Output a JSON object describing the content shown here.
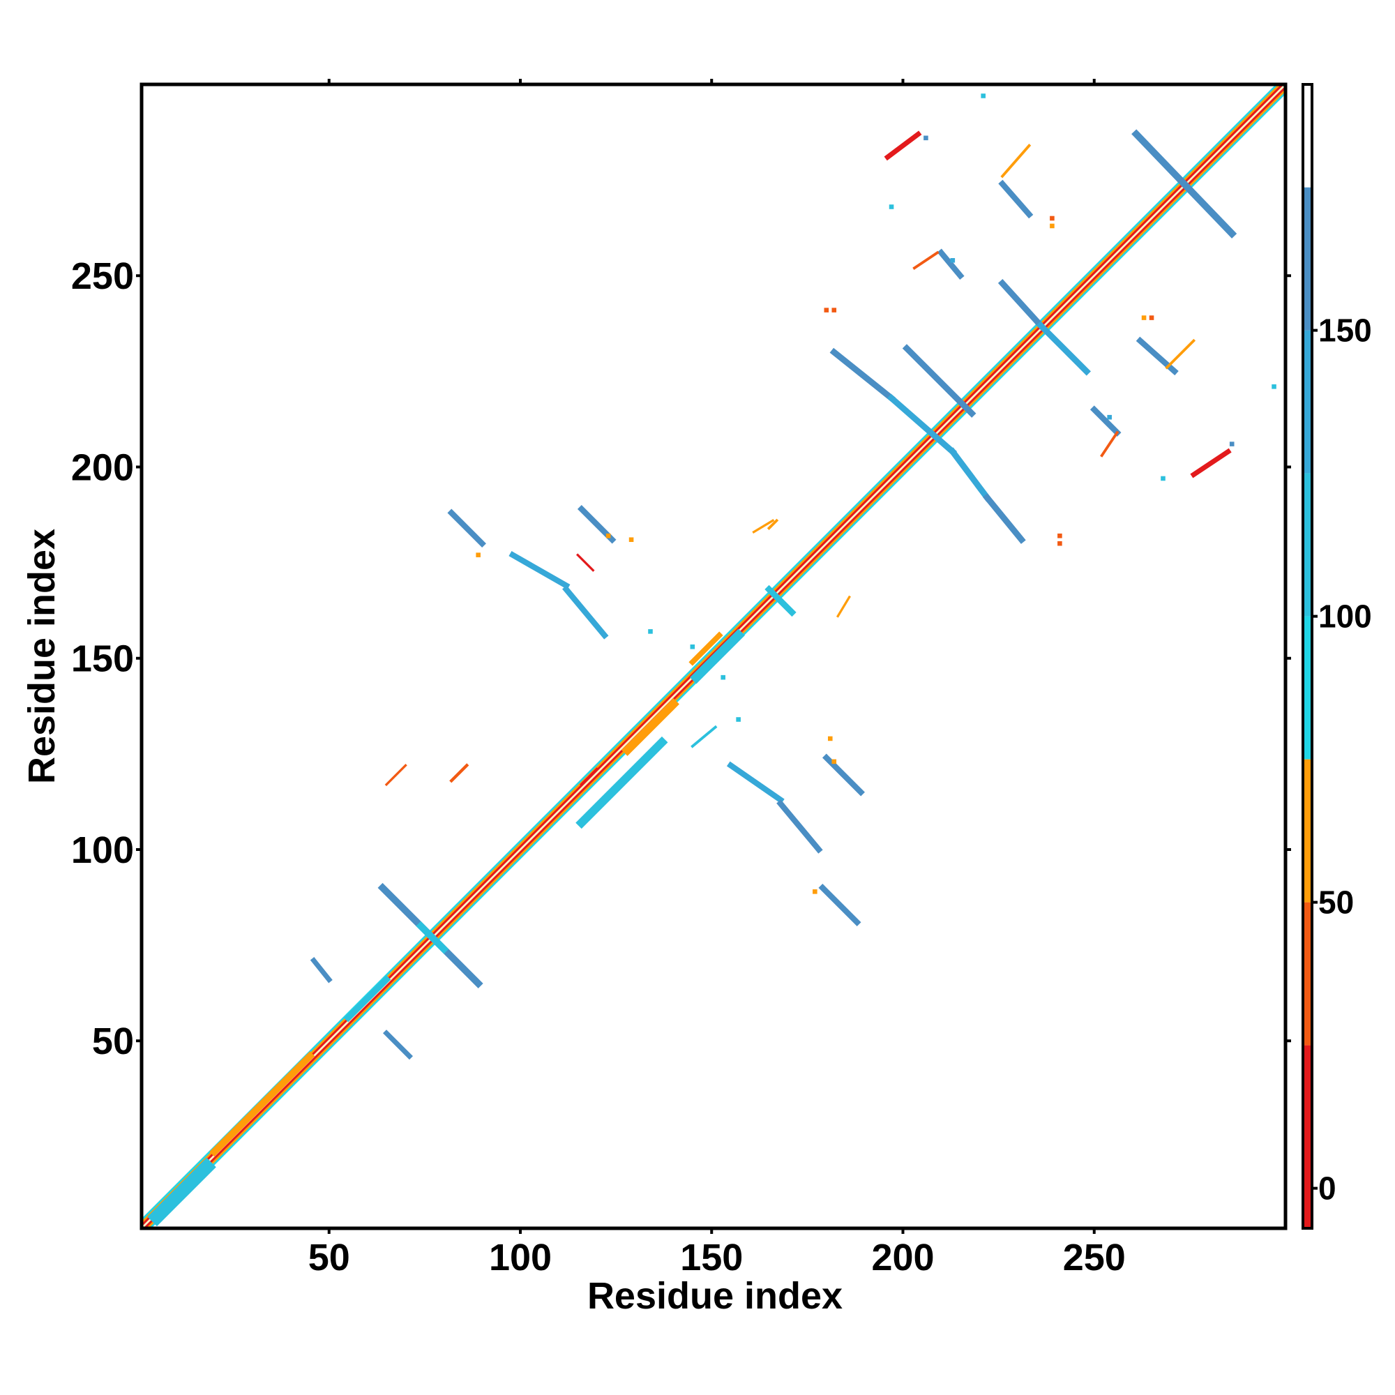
{
  "chart_data": {
    "type": "heatmap",
    "title": "",
    "xlabel": "Residue index",
    "ylabel": "Residue index",
    "xlim": [
      1,
      300
    ],
    "ylim": [
      1,
      300
    ],
    "x_ticks": [
      50,
      100,
      150,
      200,
      250
    ],
    "y_ticks": [
      50,
      100,
      150,
      200,
      250
    ],
    "grid": false,
    "colorbar": {
      "ticks": [
        0,
        50,
        100,
        150
      ],
      "range": [
        -7,
        193
      ],
      "bands": [
        {
          "from": -7,
          "to": 25,
          "color": "#e31a1c"
        },
        {
          "from": 25,
          "to": 50,
          "color": "#f25a13"
        },
        {
          "from": 50,
          "to": 75,
          "color": "#ff9d0a"
        },
        {
          "from": 75,
          "to": 100,
          "color": "#20d6e6"
        },
        {
          "from": 100,
          "to": 125,
          "color": "#2cc0dd"
        },
        {
          "from": 125,
          "to": 150,
          "color": "#36a8d8"
        },
        {
          "from": 150,
          "to": 175,
          "color": "#4a8ec4"
        },
        {
          "from": 175,
          "to": 193,
          "color": "#ffffff"
        }
      ]
    },
    "diagonal": {
      "from": 1,
      "to": 300
    },
    "segments": [
      {
        "x1": 5,
        "y1": 4,
        "x2": 18,
        "y2": 17,
        "value": 100,
        "width": 3.5
      },
      {
        "x1": 20,
        "y1": 21,
        "x2": 45,
        "y2": 46,
        "value": 60,
        "width": 1.8
      },
      {
        "x1": 55,
        "y1": 56,
        "x2": 65,
        "y2": 66,
        "value": 100,
        "width": 1.6
      },
      {
        "x1": 46,
        "y1": 71,
        "x2": 50,
        "y2": 66,
        "value": 155,
        "width": 1.3
      },
      {
        "x1": 65,
        "y1": 52,
        "x2": 71,
        "y2": 46,
        "value": 155,
        "width": 1.3
      },
      {
        "x1": 64,
        "y1": 90,
        "x2": 89,
        "y2": 65,
        "value": 150,
        "width": 1.8
      },
      {
        "x1": 74,
        "y1": 80,
        "x2": 80,
        "y2": 74,
        "value": 105,
        "width": 1.8
      },
      {
        "x1": 82,
        "y1": 118,
        "x2": 86,
        "y2": 122,
        "value": 40,
        "width": 0.8
      },
      {
        "x1": 116,
        "y1": 107,
        "x2": 137,
        "y2": 128,
        "value": 100,
        "width": 2.2
      },
      {
        "x1": 128,
        "y1": 126,
        "x2": 140,
        "y2": 138,
        "value": 60,
        "width": 2.2
      },
      {
        "x1": 146,
        "y1": 145,
        "x2": 157,
        "y2": 156,
        "value": 100,
        "width": 2.4
      },
      {
        "x1": 145,
        "y1": 149,
        "x2": 152,
        "y2": 156,
        "value": 60,
        "width": 1.4
      },
      {
        "x1": 165,
        "y1": 168,
        "x2": 171,
        "y2": 162,
        "value": 100,
        "width": 1.6
      },
      {
        "x1": 82,
        "y1": 188,
        "x2": 90,
        "y2": 180,
        "value": 150,
        "width": 1.5
      },
      {
        "x1": 116,
        "y1": 189,
        "x2": 124,
        "y2": 181,
        "value": 150,
        "width": 1.5
      },
      {
        "x1": 98,
        "y1": 177,
        "x2": 112,
        "y2": 169,
        "value": 130,
        "width": 1.5
      },
      {
        "x1": 112,
        "y1": 168,
        "x2": 122,
        "y2": 156,
        "value": 145,
        "width": 1.5
      },
      {
        "x1": 155,
        "y1": 122,
        "x2": 168,
        "y2": 113,
        "value": 145,
        "width": 1.5
      },
      {
        "x1": 168,
        "y1": 112,
        "x2": 178,
        "y2": 100,
        "value": 150,
        "width": 1.5
      },
      {
        "x1": 180,
        "y1": 124,
        "x2": 189,
        "y2": 115,
        "value": 150,
        "width": 1.5
      },
      {
        "x1": 179,
        "y1": 90,
        "x2": 188,
        "y2": 81,
        "value": 150,
        "width": 1.5
      },
      {
        "x1": 116,
        "y1": 117,
        "x2": 120,
        "y2": 121,
        "value": 10,
        "width": 0.7
      },
      {
        "x1": 145,
        "y1": 127,
        "x2": 151,
        "y2": 132,
        "value": 100,
        "width": 0.7
      },
      {
        "x1": 167,
        "y1": 186,
        "x2": 165,
        "y2": 184,
        "value": 60,
        "width": 0.7
      },
      {
        "x1": 115,
        "y1": 177,
        "x2": 119,
        "y2": 173,
        "value": 10,
        "width": 0.6
      },
      {
        "x1": 201,
        "y1": 231,
        "x2": 218,
        "y2": 214,
        "value": 150,
        "width": 1.6
      },
      {
        "x1": 182,
        "y1": 230,
        "x2": 197,
        "y2": 218,
        "value": 150,
        "width": 1.6
      },
      {
        "x1": 197,
        "y1": 218,
        "x2": 213,
        "y2": 204,
        "value": 130,
        "width": 1.6
      },
      {
        "x1": 213,
        "y1": 204,
        "x2": 222,
        "y2": 192,
        "value": 140,
        "width": 1.6
      },
      {
        "x1": 222,
        "y1": 192,
        "x2": 231,
        "y2": 181,
        "value": 150,
        "width": 1.6
      },
      {
        "x1": 226,
        "y1": 248,
        "x2": 236,
        "y2": 237,
        "value": 150,
        "width": 1.6
      },
      {
        "x1": 236,
        "y1": 237,
        "x2": 248,
        "y2": 225,
        "value": 140,
        "width": 1.6
      },
      {
        "x1": 261,
        "y1": 287,
        "x2": 286,
        "y2": 261,
        "value": 150,
        "width": 1.8
      },
      {
        "x1": 226,
        "y1": 274,
        "x2": 233,
        "y2": 266,
        "value": 150,
        "width": 1.5
      },
      {
        "x1": 210,
        "y1": 256,
        "x2": 215,
        "y2": 250,
        "value": 150,
        "width": 1.5
      },
      {
        "x1": 262,
        "y1": 233,
        "x2": 271,
        "y2": 225,
        "value": 150,
        "width": 1.5
      },
      {
        "x1": 250,
        "y1": 215,
        "x2": 256,
        "y2": 209,
        "value": 150,
        "width": 1.5
      },
      {
        "x1": 196,
        "y1": 281,
        "x2": 204,
        "y2": 287,
        "value": 10,
        "width": 1.3
      },
      {
        "x1": 276,
        "y1": 198,
        "x2": 285,
        "y2": 204,
        "value": 10,
        "width": 1.3
      },
      {
        "x1": 226,
        "y1": 276,
        "x2": 233,
        "y2": 284,
        "value": 60,
        "width": 0.7
      },
      {
        "x1": 269,
        "y1": 226,
        "x2": 276,
        "y2": 233,
        "value": 60,
        "width": 0.7
      },
      {
        "x1": 203,
        "y1": 252,
        "x2": 209,
        "y2": 256,
        "value": 40,
        "width": 0.7
      },
      {
        "x1": 252,
        "y1": 203,
        "x2": 256,
        "y2": 209,
        "value": 40,
        "width": 0.7
      },
      {
        "x1": 161,
        "y1": 183,
        "x2": 166,
        "y2": 186,
        "value": 60,
        "width": 0.6
      },
      {
        "x1": 183,
        "y1": 161,
        "x2": 186,
        "y2": 166,
        "value": 60,
        "width": 0.6
      },
      {
        "x1": 65,
        "y1": 117,
        "x2": 70,
        "y2": 122,
        "value": 40,
        "width": 0.6
      }
    ],
    "points": [
      {
        "x": 123,
        "y": 182,
        "value": 60
      },
      {
        "x": 182,
        "y": 123,
        "value": 60
      },
      {
        "x": 177,
        "y": 89,
        "value": 60
      },
      {
        "x": 89,
        "y": 177,
        "value": 60
      },
      {
        "x": 181,
        "y": 129,
        "value": 60
      },
      {
        "x": 129,
        "y": 181,
        "value": 60
      },
      {
        "x": 239,
        "y": 265,
        "value": 40
      },
      {
        "x": 265,
        "y": 239,
        "value": 40
      },
      {
        "x": 241,
        "y": 182,
        "value": 40
      },
      {
        "x": 182,
        "y": 241,
        "value": 40
      },
      {
        "x": 180,
        "y": 241,
        "value": 40
      },
      {
        "x": 241,
        "y": 180,
        "value": 40
      },
      {
        "x": 263,
        "y": 239,
        "value": 60
      },
      {
        "x": 239,
        "y": 263,
        "value": 60
      },
      {
        "x": 206,
        "y": 286,
        "value": 150
      },
      {
        "x": 286,
        "y": 206,
        "value": 150
      },
      {
        "x": 197,
        "y": 268,
        "value": 100
      },
      {
        "x": 268,
        "y": 197,
        "value": 100
      },
      {
        "x": 213,
        "y": 254,
        "value": 130
      },
      {
        "x": 254,
        "y": 213,
        "value": 130
      },
      {
        "x": 221,
        "y": 297,
        "value": 100
      },
      {
        "x": 297,
        "y": 221,
        "value": 100
      },
      {
        "x": 145,
        "y": 153,
        "value": 100
      },
      {
        "x": 153,
        "y": 145,
        "value": 100
      },
      {
        "x": 134,
        "y": 157,
        "value": 100
      },
      {
        "x": 157,
        "y": 134,
        "value": 100
      }
    ]
  }
}
